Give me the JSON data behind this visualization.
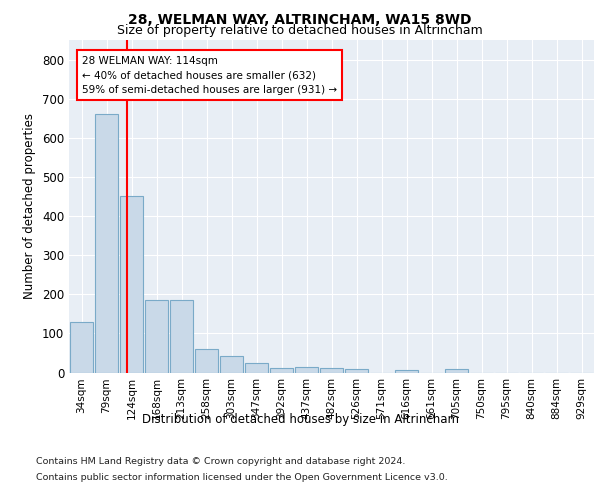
{
  "title1": "28, WELMAN WAY, ALTRINCHAM, WA15 8WD",
  "title2": "Size of property relative to detached houses in Altrincham",
  "xlabel": "Distribution of detached houses by size in Altrincham",
  "ylabel": "Number of detached properties",
  "bin_labels": [
    "34sqm",
    "79sqm",
    "124sqm",
    "168sqm",
    "213sqm",
    "258sqm",
    "303sqm",
    "347sqm",
    "392sqm",
    "437sqm",
    "482sqm",
    "526sqm",
    "571sqm",
    "616sqm",
    "661sqm",
    "705sqm",
    "750sqm",
    "795sqm",
    "840sqm",
    "884sqm",
    "929sqm"
  ],
  "bar_heights": [
    128,
    660,
    452,
    185,
    185,
    60,
    43,
    25,
    12,
    13,
    11,
    9,
    0,
    6,
    0,
    9,
    0,
    0,
    0,
    0,
    0
  ],
  "bar_color": "#c9d9e8",
  "bar_edge_color": "#7aaac8",
  "property_line_x": 1.82,
  "annotation_line1": "28 WELMAN WAY: 114sqm",
  "annotation_line2": "← 40% of detached houses are smaller (632)",
  "annotation_line3": "59% of semi-detached houses are larger (931) →",
  "ylim": [
    0,
    850
  ],
  "yticks": [
    0,
    100,
    200,
    300,
    400,
    500,
    600,
    700,
    800
  ],
  "background_color": "#e8eef5",
  "grid_color": "#ffffff",
  "footer_line1": "Contains HM Land Registry data © Crown copyright and database right 2024.",
  "footer_line2": "Contains public sector information licensed under the Open Government Licence v3.0."
}
